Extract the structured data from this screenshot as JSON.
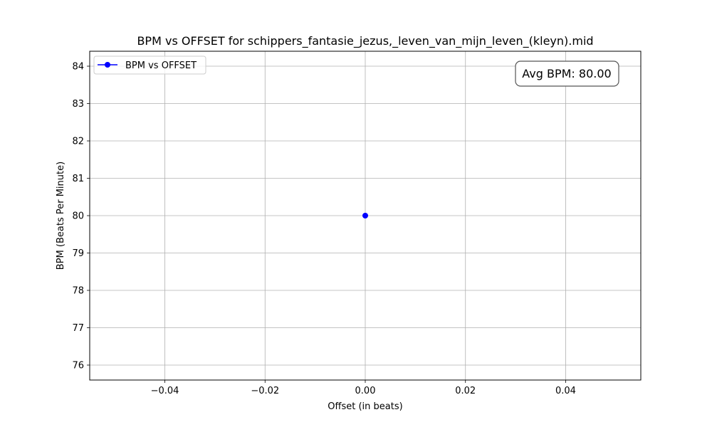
{
  "chart_data": {
    "type": "line",
    "title": "BPM vs OFFSET for schippers_fantasie_jezus,_leven_van_mijn_leven_(kleyn).mid",
    "xlabel": "Offset (in beats)",
    "ylabel": "BPM (Beats Per Minute)",
    "xlim": [
      -0.055,
      0.055
    ],
    "ylim": [
      75.6,
      84.4
    ],
    "x_ticks": [
      -0.04,
      -0.02,
      0.0,
      0.02,
      0.04
    ],
    "x_tick_labels": [
      "−0.04",
      "−0.02",
      "0.00",
      "0.02",
      "0.04"
    ],
    "y_ticks": [
      76,
      77,
      78,
      79,
      80,
      81,
      82,
      83,
      84
    ],
    "y_tick_labels": [
      "76",
      "77",
      "78",
      "79",
      "80",
      "81",
      "82",
      "83",
      "84"
    ],
    "grid": true,
    "legend_position": "top-left",
    "series": [
      {
        "name": "BPM vs OFFSET",
        "color": "#0000ff",
        "marker": "circle",
        "points": [
          {
            "x": 0.0,
            "y": 80.0
          }
        ]
      }
    ],
    "annotation": {
      "text": "Avg BPM: 80.00",
      "position": "top-right"
    }
  }
}
